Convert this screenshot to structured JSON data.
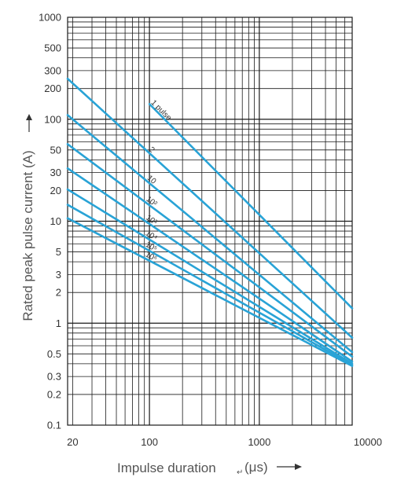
{
  "chart_data": {
    "type": "line",
    "title": "",
    "xlabel": "Impulse duration",
    "xlabel_return_glyph": "↵",
    "xlabel_unit": "(μs)",
    "ylabel": "Rated peak pulse current (A)",
    "x_scale": "log",
    "y_scale": "log",
    "xlim": [
      18,
      7000
    ],
    "ylim": [
      0.1,
      1000
    ],
    "x_tick_labels": [
      {
        "value": 20,
        "label": "20"
      },
      {
        "value": 100,
        "label": "100"
      },
      {
        "value": 1000,
        "label": "1000"
      },
      {
        "value": 10000,
        "label": "10000"
      }
    ],
    "y_tick_labels": [
      {
        "value": 1000,
        "label": "1000"
      },
      {
        "value": 500,
        "label": "500"
      },
      {
        "value": 300,
        "label": "300"
      },
      {
        "value": 200,
        "label": "200"
      },
      {
        "value": 100,
        "label": "100"
      },
      {
        "value": 50,
        "label": "50"
      },
      {
        "value": 30,
        "label": "30"
      },
      {
        "value": 20,
        "label": "20"
      },
      {
        "value": 10,
        "label": "10"
      },
      {
        "value": 5,
        "label": "5"
      },
      {
        "value": 3,
        "label": "3"
      },
      {
        "value": 2,
        "label": "2"
      },
      {
        "value": 1,
        "label": "1"
      },
      {
        "value": 0.5,
        "label": "0.5"
      },
      {
        "value": 0.3,
        "label": "0.3"
      },
      {
        "value": 0.2,
        "label": "0.2"
      },
      {
        "value": 0.1,
        "label": "0.1"
      }
    ],
    "grid": true,
    "line_color": "#29a3d6",
    "grid_color": "#1a1a1a",
    "series": [
      {
        "name": "1 pulse",
        "points": [
          [
            100,
            141
          ],
          [
            7000,
            1.4
          ]
        ]
      },
      {
        "name": "2",
        "points": [
          [
            18,
            250
          ],
          [
            7000,
            0.72
          ]
        ]
      },
      {
        "name": "10",
        "points": [
          [
            18,
            110
          ],
          [
            7000,
            0.52
          ]
        ]
      },
      {
        "name": "10²",
        "points": [
          [
            18,
            57
          ],
          [
            7000,
            0.47
          ]
        ]
      },
      {
        "name": "10³",
        "points": [
          [
            18,
            33
          ],
          [
            7000,
            0.42
          ]
        ]
      },
      {
        "name": "10⁴",
        "points": [
          [
            18,
            20.5
          ],
          [
            7000,
            0.4
          ]
        ]
      },
      {
        "name": "10⁵",
        "points": [
          [
            18,
            14.5
          ],
          [
            7000,
            0.39
          ]
        ]
      },
      {
        "name": "10⁶",
        "points": [
          [
            18,
            10.7
          ],
          [
            7000,
            0.38
          ]
        ]
      }
    ]
  }
}
